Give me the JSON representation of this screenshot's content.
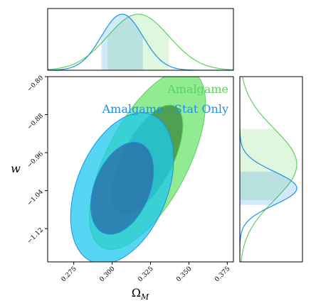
{
  "chart_data": {
    "type": "contour",
    "xlabel": "Ω_M",
    "ylabel": "w",
    "xlim": [
      0.258,
      0.379
    ],
    "ylim": [
      -1.19,
      -0.8
    ],
    "x_ticks": [
      "0.275",
      "0.300",
      "0.325",
      "0.350",
      "0.375"
    ],
    "y_ticks": [
      "−0.80",
      "−0.88",
      "−0.96",
      "−1.04",
      "−1.12"
    ],
    "x_tick_values": [
      0.275,
      0.3,
      0.325,
      0.35,
      0.375
    ],
    "y_tick_values": [
      -0.8,
      -0.88,
      -0.96,
      -1.04,
      -1.12
    ],
    "series": [
      {
        "name": "Amalgame",
        "color": "#5ed15e",
        "fill": "#7ee87e",
        "dark_fill": "#3e8f3e",
        "center": [
          0.323,
          -0.975
        ],
        "sigma_x": 0.0152,
        "sigma_y": 0.076,
        "rho": 0.63,
        "marginal_x": {
          "mu": 0.317,
          "sigma": 0.02,
          "band": [
            0.297,
            0.337
          ]
        },
        "marginal_y": {
          "mu": -0.985,
          "sigma": 0.075,
          "band": [
            -1.06,
            -0.91
          ]
        }
      },
      {
        "name": "Amalgame - Stat Only",
        "color": "#1e90e6",
        "fill": "#1ec8ee",
        "dark_fill": "#2a6fa8",
        "center": [
          0.3065,
          -1.035
        ],
        "sigma_x": 0.0135,
        "sigma_y": 0.064,
        "rho": 0.38,
        "marginal_x": {
          "mu": 0.3065,
          "sigma": 0.0135,
          "band": [
            0.293,
            0.32
          ]
        },
        "marginal_y": {
          "mu": -1.035,
          "sigma": 0.035,
          "band": [
            -1.07,
            -1.0
          ]
        }
      }
    ]
  }
}
